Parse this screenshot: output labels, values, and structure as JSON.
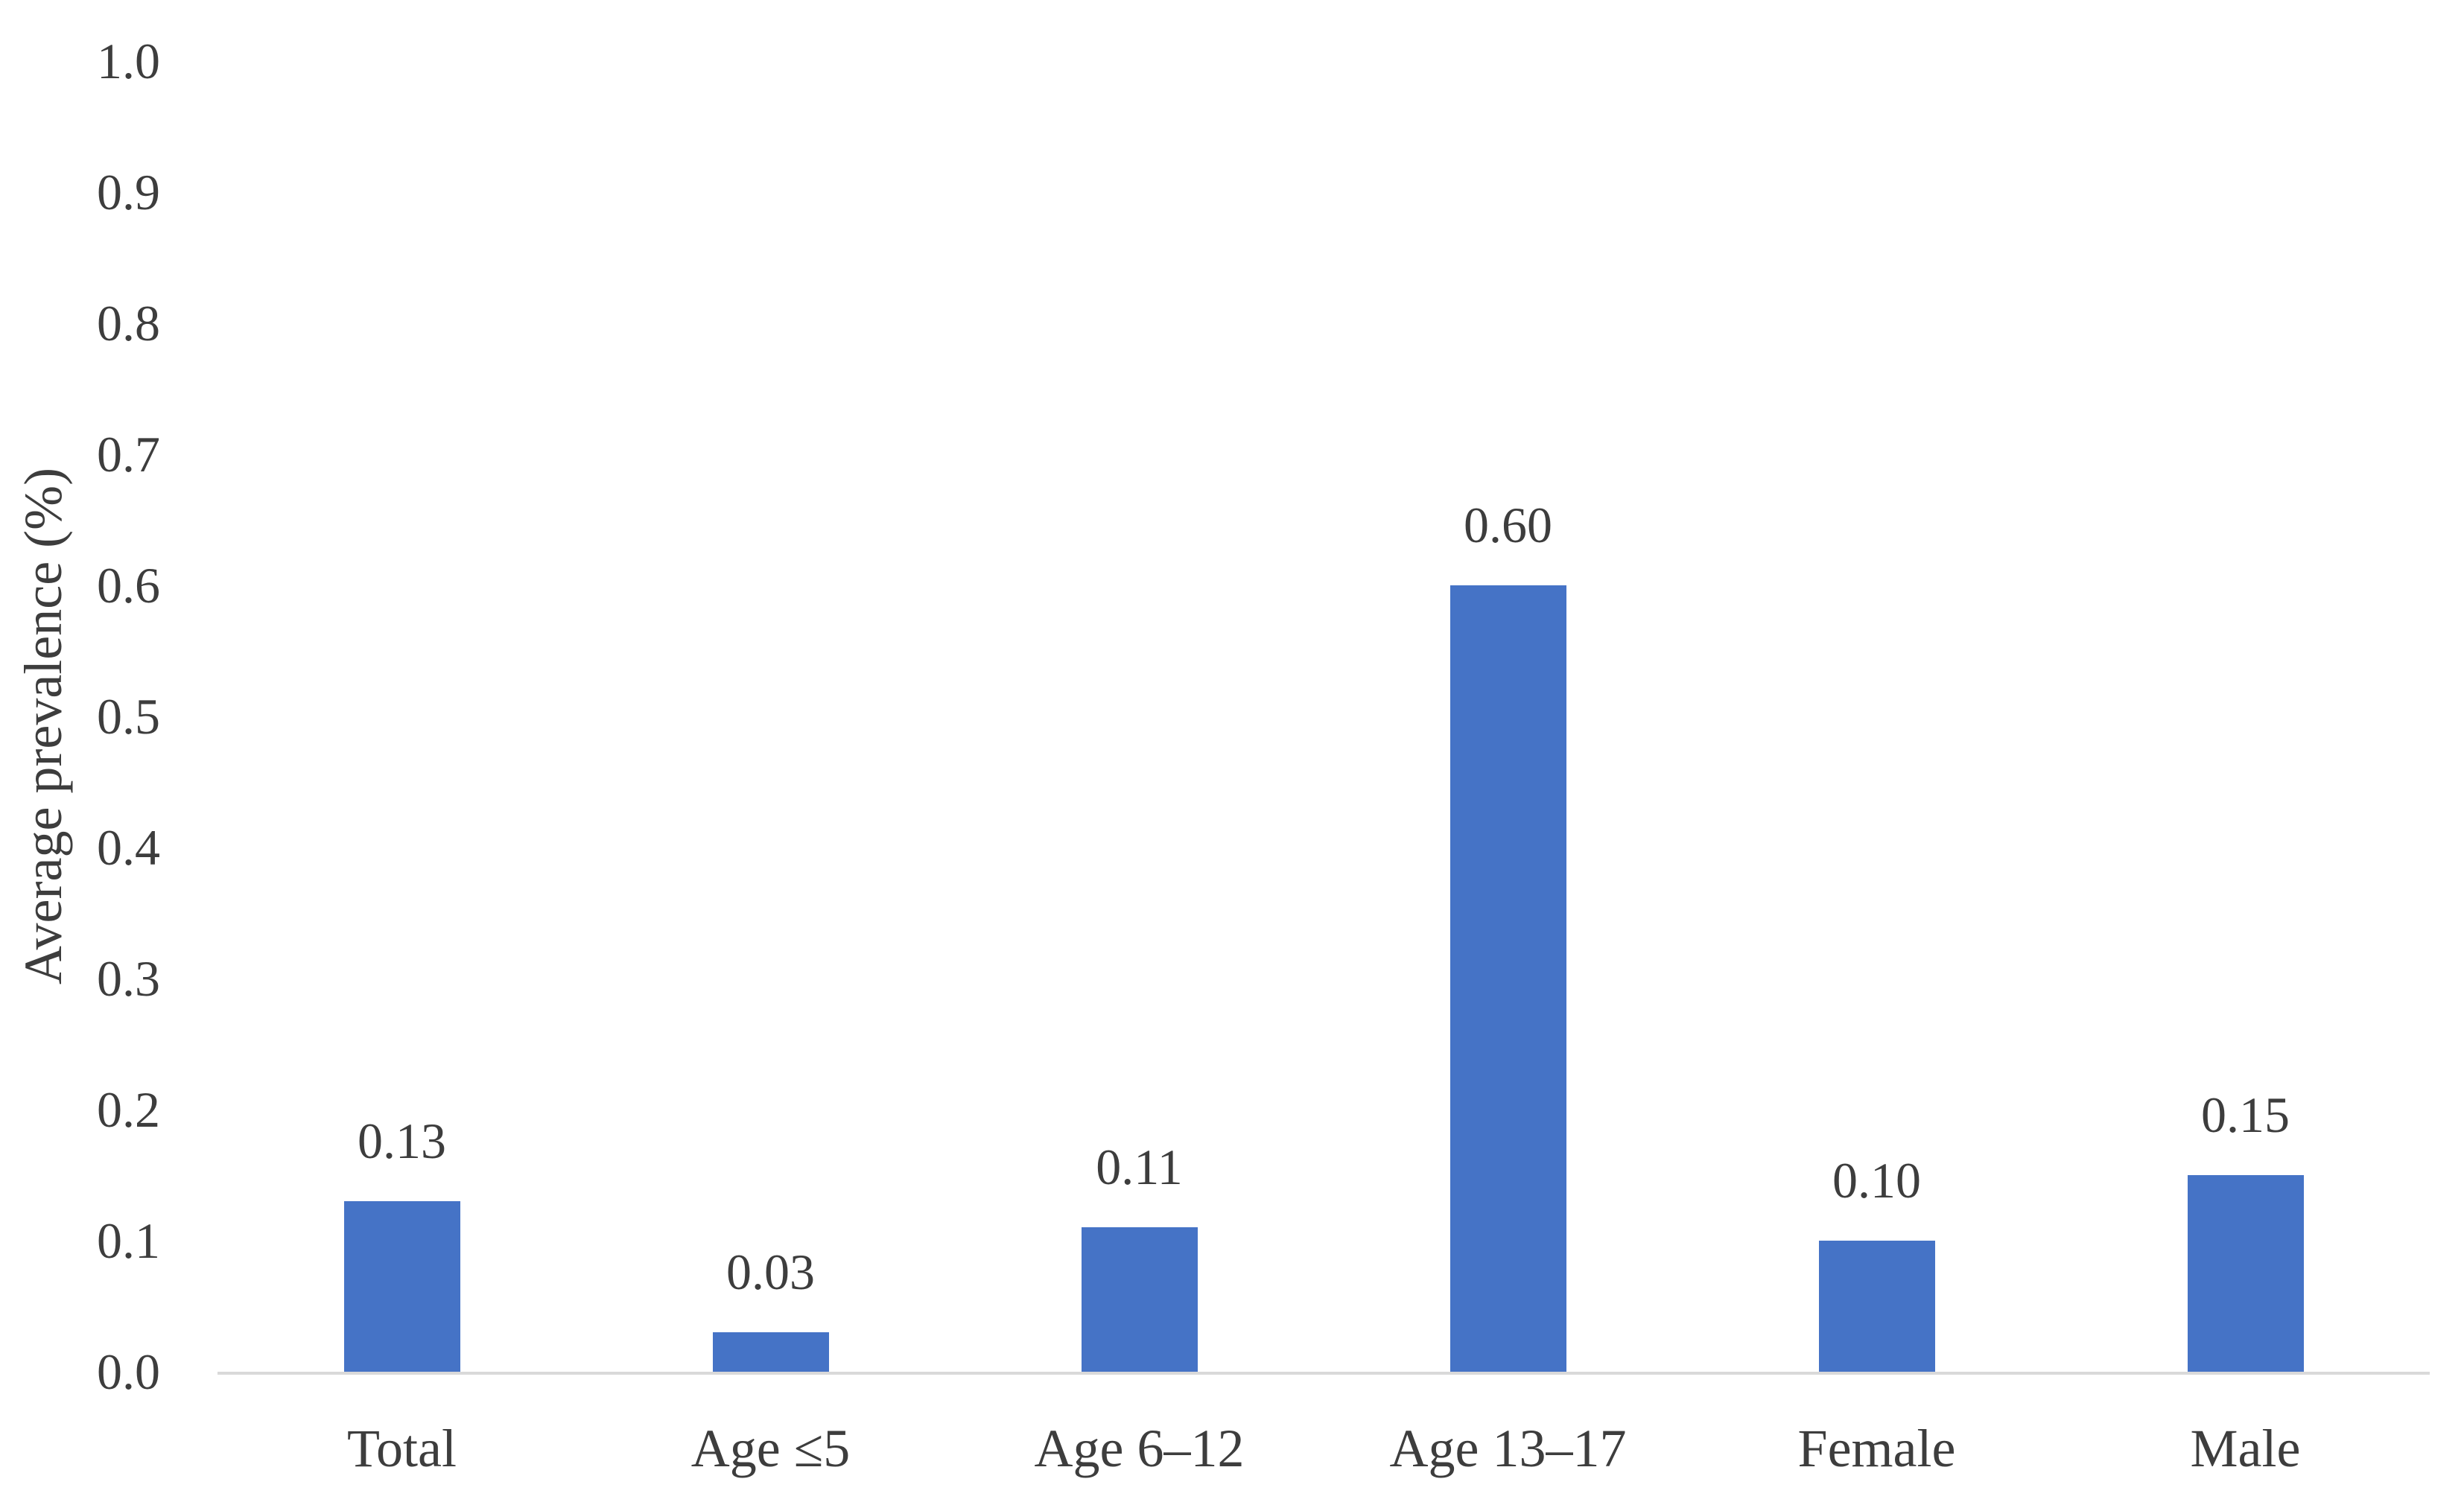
{
  "chart_data": {
    "type": "bar",
    "title": "",
    "xlabel": "",
    "ylabel": "Average prevalence (%)",
    "categories": [
      "Total",
      "Age ≤5",
      "Age 6–12",
      "Age 13–17",
      "Female",
      "Male"
    ],
    "values": [
      0.13,
      0.03,
      0.11,
      0.6,
      0.1,
      0.15
    ],
    "data_labels": [
      "0.13",
      "0.03",
      "0.11",
      "0.60",
      "0.10",
      "0.15"
    ],
    "ylim": [
      0.0,
      1.0
    ],
    "ytick_step": 0.1,
    "ytick_labels": [
      "0.0",
      "0.1",
      "0.2",
      "0.3",
      "0.4",
      "0.5",
      "0.6",
      "0.7",
      "0.8",
      "0.9",
      "1.0"
    ],
    "grid": false,
    "legend": false,
    "colors": {
      "bar": "#4573c6",
      "axis_line": "#d9d9d9",
      "text": "#3d3d3d",
      "background": "#ffffff"
    }
  }
}
